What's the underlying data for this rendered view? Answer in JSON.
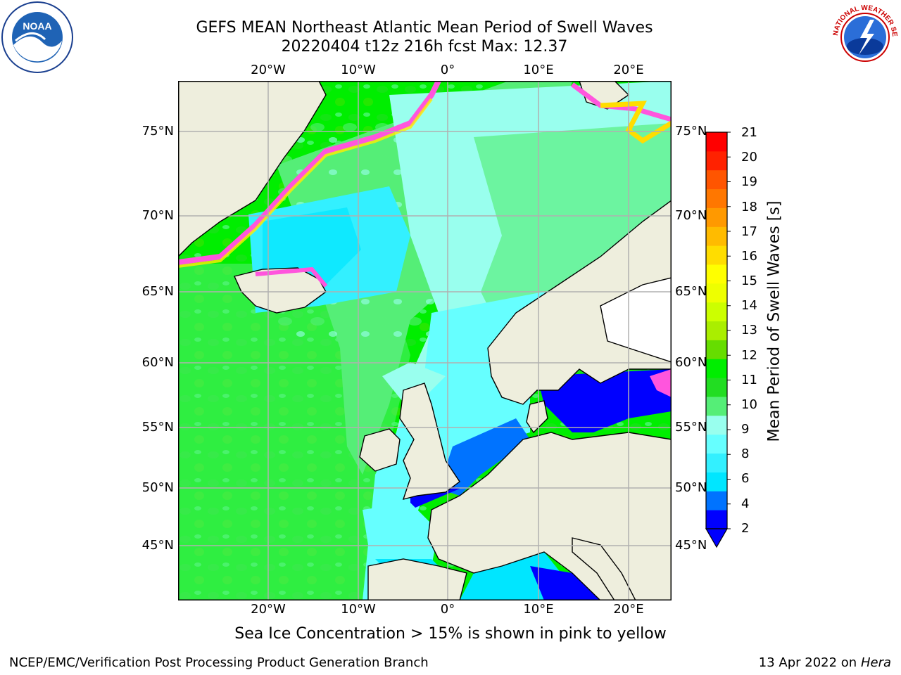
{
  "header": {
    "title_line1": "GEFS MEAN Northeast Atlantic Mean Period of Swell Waves",
    "title_line2": "20220404 t12z 216h fcst   Max: 12.37"
  },
  "map": {
    "lon_labels": [
      "20°W",
      "10°W",
      "0°",
      "10°E",
      "20°E"
    ],
    "lat_labels": [
      "75°N",
      "70°N",
      "65°N",
      "60°N",
      "55°N",
      "50°N",
      "45°N"
    ],
    "colors": {
      "land": "#eeeedd",
      "ice_free_white": "#ffffff",
      "grid": "#b0b0b0",
      "coast": "#000000"
    }
  },
  "colorbar": {
    "label": "Mean Period of Swell Waves [s]",
    "ticks": [
      "21",
      "20",
      "19",
      "18",
      "17",
      "16",
      "15",
      "14",
      "13",
      "12",
      "11",
      "10",
      "9",
      "8",
      "6",
      "4",
      "2"
    ],
    "colors_low_to_high": [
      "#0000ff",
      "#0073ff",
      "#00e6ff",
      "#33f0ff",
      "#66ffff",
      "#99ffee",
      "#55ee77",
      "#22dd22",
      "#00ee00",
      "#66dd00",
      "#aaee00",
      "#ccff00",
      "#eeff00",
      "#ffff00",
      "#ffdd00",
      "#ffbb00",
      "#ff9900",
      "#ff7700",
      "#ff5500",
      "#ff2200",
      "#ff0000"
    ]
  },
  "footer": {
    "note": "Sea Ice Concentration > 15% is shown in pink to yellow",
    "credit": "NCEP/EMC/Verification Post Processing Product Generation Branch",
    "date": "13 Apr 2022 on",
    "host": "Hera"
  },
  "logos": {
    "left": {
      "name": "noaa-logo",
      "text": "NOAA"
    },
    "right": {
      "name": "nws-logo",
      "text": "NATIONAL WEATHER SERVICE"
    }
  }
}
